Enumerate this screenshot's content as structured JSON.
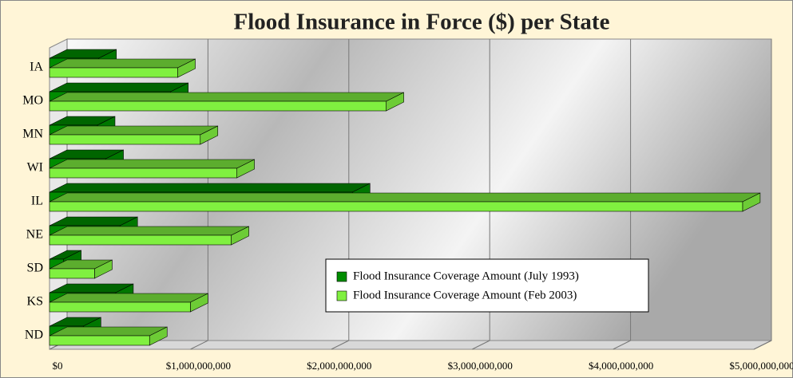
{
  "chart_data": {
    "type": "bar3d-horizontal",
    "title": "Flood Insurance in Force ($) per State",
    "categories": [
      "IA",
      "MO",
      "MN",
      "WI",
      "IL",
      "NE",
      "SD",
      "KS",
      "ND"
    ],
    "series": [
      {
        "name": "Flood Insurance Coverage Amount (July 1993)",
        "color": "#008c00",
        "values": [
          350000000,
          860000000,
          340000000,
          400000000,
          2150000000,
          500000000,
          100000000,
          470000000,
          240000000
        ]
      },
      {
        "name": "Flood Insurance Coverage Amount (Feb 2003)",
        "color": "#80f040",
        "values": [
          910000000,
          2390000000,
          1070000000,
          1330000000,
          4920000000,
          1290000000,
          320000000,
          1000000000,
          710000000
        ]
      }
    ],
    "xlim": [
      0,
      5000000000
    ],
    "xticks": [
      {
        "value": 0,
        "label": "$0"
      },
      {
        "value": 1000000000,
        "label": "$1,000,000,000"
      },
      {
        "value": 2000000000,
        "label": "$2,000,000,000"
      },
      {
        "value": 3000000000,
        "label": "$3,000,000,000"
      },
      {
        "value": 4000000000,
        "label": "$4,000,000,000"
      },
      {
        "value": 5000000000,
        "label": "$5,000,000,000"
      }
    ],
    "grid": true,
    "legend": "lower-right"
  }
}
